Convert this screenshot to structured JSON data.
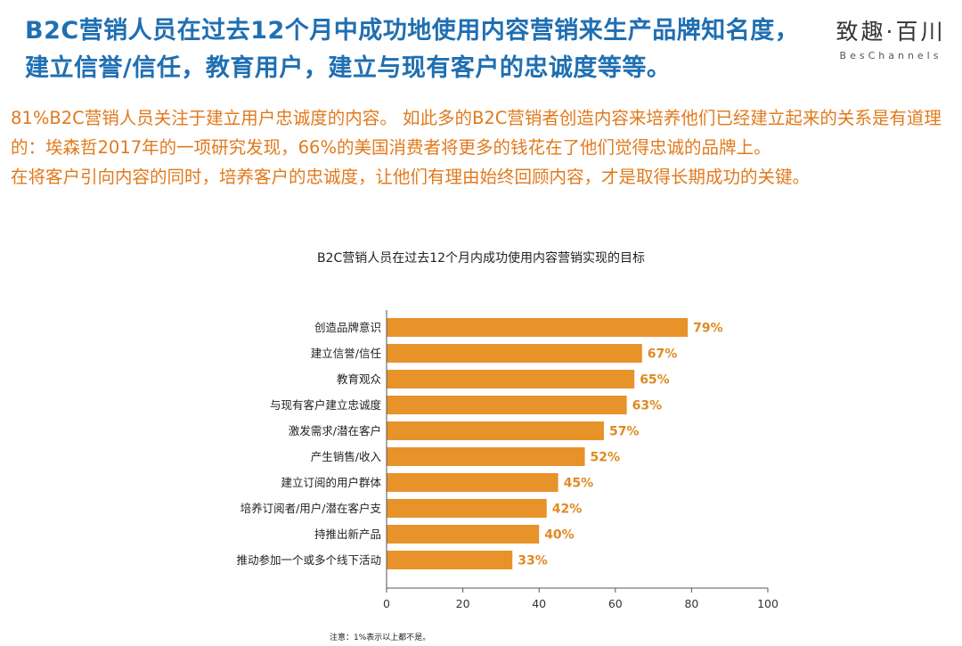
{
  "header": {
    "title": "B2C营销人员在过去12个月中成功地使用内容营销来生产品牌知名度，建立信誉/信任，教育用户，建立与现有客户的忠诚度等等。",
    "logo_cn": "致趣·百川",
    "logo_en": "BesChannels"
  },
  "body": {
    "lines": [
      "81%B2C营销人员关注于建立用户忠诚度的内容。 如此多的B2C营销者创造内容来培养他们已经建立起来的关系是有道理的：埃森哲2017年的一项研究发现，66%的美国消费者将更多的钱花在了他们觉得忠诚的品牌上。",
      "在将客户引向内容的同时，培养客户的忠诚度，让他们有理由始终回顾内容，才是取得长期成功的关键。"
    ]
  },
  "colors": {
    "title": "#1f6fb2",
    "text": "#e07a1c",
    "bar": "#e8922a",
    "label": "#e08a22"
  },
  "chart_data": {
    "type": "bar",
    "orientation": "horizontal",
    "title": "B2C营销人员在过去12个月内成功使用内容营销实现的目标",
    "categories": [
      "创造品牌意识",
      "建立信誉/信任",
      "教育观众",
      "与现有客户建立忠诚度",
      "激发需求/潜在客户",
      "产生销售/收入",
      "建立订阅的用户群体",
      "培养订阅者/用户/潜在客户支",
      "持推出新产品",
      "推动参加一个或多个线下活动"
    ],
    "values": [
      79,
      67,
      65,
      63,
      57,
      52,
      45,
      42,
      40,
      33
    ],
    "value_labels": [
      "79%",
      "67%",
      "65%",
      "63%",
      "57%",
      "52%",
      "45%",
      "42%",
      "40%",
      "33%"
    ],
    "xlim": [
      0,
      100
    ],
    "xticks": [
      0,
      20,
      40,
      60,
      80,
      100
    ],
    "xlabel": "",
    "ylabel": "",
    "grid": false,
    "note": "注意：1%表示以上都不是。"
  }
}
